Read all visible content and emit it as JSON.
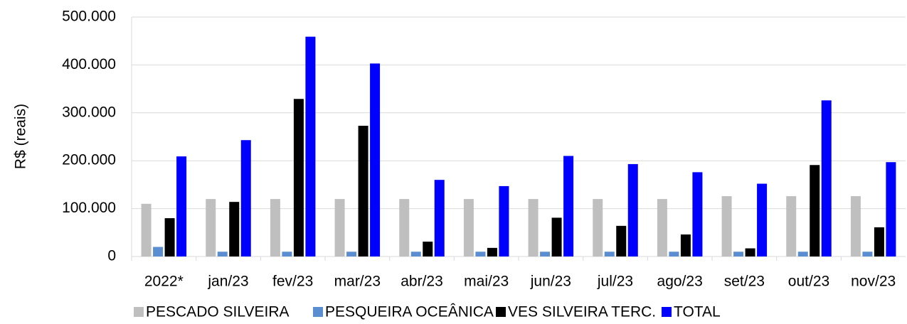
{
  "chart_data": {
    "type": "bar",
    "y_label": "R$ (reais)",
    "categories": [
      "2022*",
      "jan/23",
      "fev/23",
      "mar/23",
      "abr/23",
      "mai/23",
      "jun/23",
      "jul/23",
      "ago/23",
      "set/23",
      "out/23",
      "nov/23"
    ],
    "series": [
      {
        "name": "PESCADO SILVEIRA",
        "color": "#bfbfbf",
        "values": [
          110000,
          120000,
          120000,
          120000,
          120000,
          120000,
          120000,
          120000,
          120000,
          126000,
          126000,
          126000
        ]
      },
      {
        "name": "PESQUEIRA OCEÂNICA",
        "color": "#5a8ed0",
        "values": [
          20000,
          10000,
          10000,
          10000,
          10000,
          10000,
          10000,
          10000,
          10000,
          10000,
          10000,
          10000
        ]
      },
      {
        "name": "VES SILVEIRA TERC.",
        "color": "#000000",
        "values": [
          80000,
          114000,
          329000,
          273000,
          31000,
          18000,
          81000,
          64000,
          46000,
          17000,
          191000,
          61000
        ]
      },
      {
        "name": "TOTAL",
        "color": "#0000ff",
        "values": [
          209000,
          243000,
          459000,
          403000,
          160000,
          147000,
          210000,
          193000,
          176000,
          152000,
          326000,
          197000
        ]
      }
    ],
    "ylim": [
      0,
      500000
    ],
    "yticks": [
      0,
      {
        "value": 100000,
        "label": "100.000"
      },
      {
        "value": 200000,
        "label": "200.000"
      },
      {
        "value": 300000,
        "label": "300.000"
      },
      {
        "value": 400000,
        "label": "400.000"
      },
      {
        "value": 500000,
        "label": "500.000"
      }
    ],
    "grid": true,
    "legend": "bottom"
  }
}
